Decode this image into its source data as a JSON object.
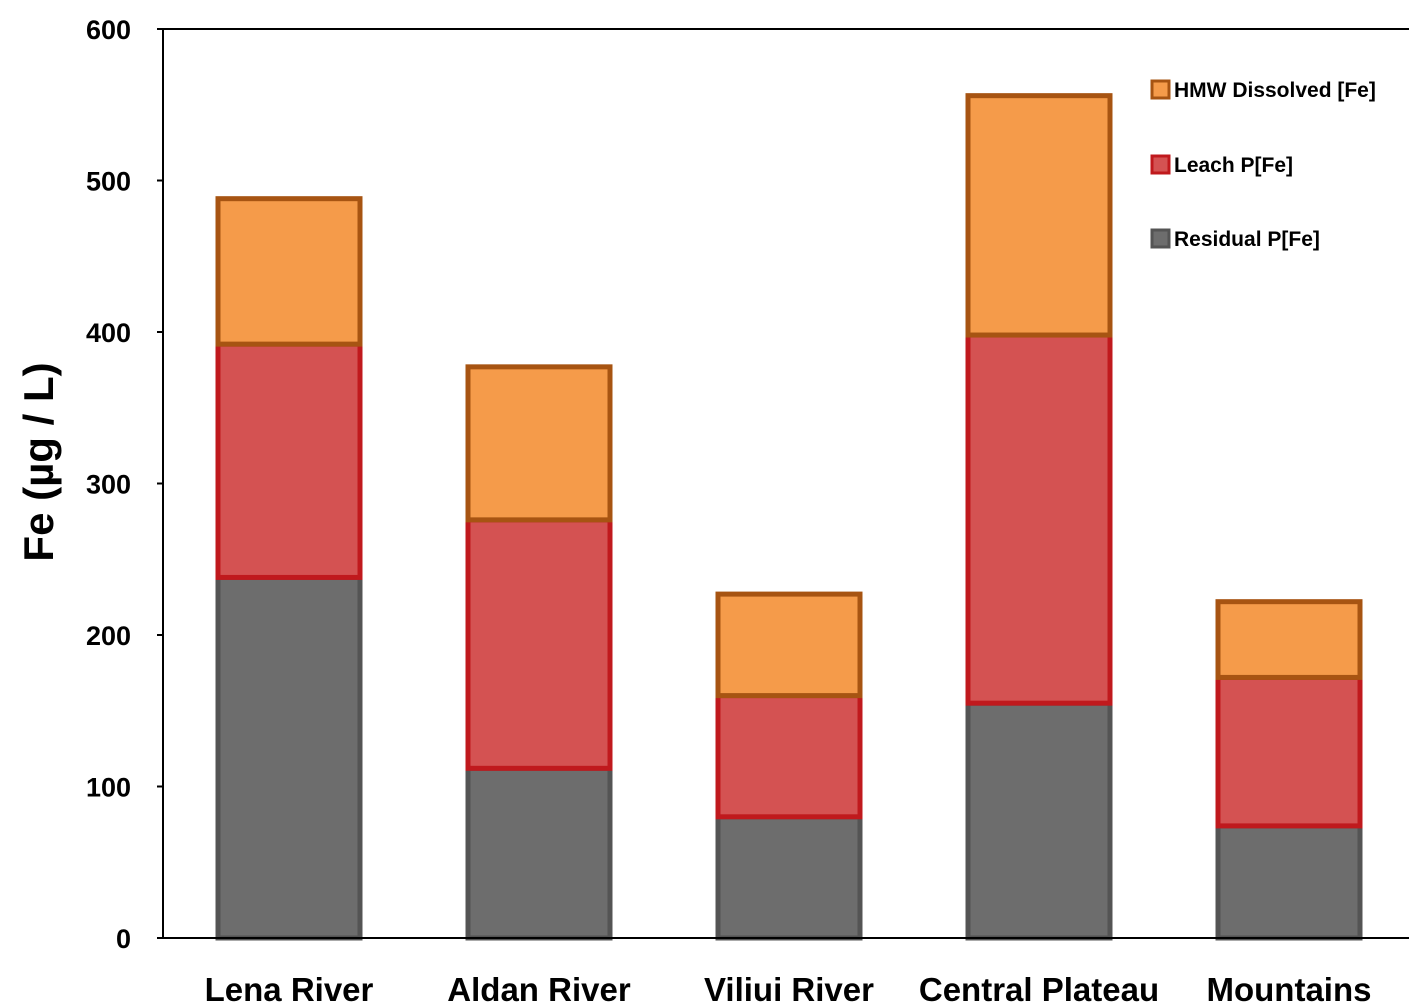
{
  "chart_data": {
    "type": "bar",
    "stacked": true,
    "title": "",
    "xlabel": "",
    "ylabel": "Fe (µg / L)",
    "ylim": [
      0,
      600
    ],
    "yticks": [
      0,
      100,
      200,
      300,
      400,
      500,
      600
    ],
    "grid": false,
    "legend_position": "top-right",
    "categories": [
      "Lena River",
      "Aldan River",
      "Viliui River",
      "Central Plateau",
      "Mountains"
    ],
    "series": [
      {
        "name": "Residual P[Fe]",
        "values": [
          238,
          112,
          80,
          155,
          74
        ],
        "fill": "#6d6d6d",
        "stroke": "#545454"
      },
      {
        "name": "Leach P[Fe]",
        "values": [
          154,
          164,
          80,
          243,
          98
        ],
        "fill": "#d45252",
        "stroke": "#c0191d"
      },
      {
        "name": "HMW Dissolved [Fe]",
        "values": [
          96,
          101,
          67,
          158,
          50
        ],
        "fill": "#f59b4a",
        "stroke": "#a75412"
      }
    ]
  }
}
